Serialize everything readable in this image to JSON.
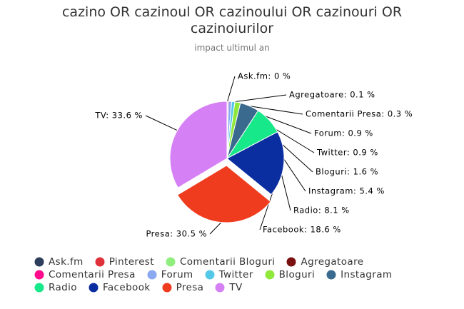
{
  "chart_data": {
    "type": "pie",
    "title": "cazino OR cazinoul OR cazinoului OR cazinouri OR cazinoiurilor",
    "subtitle": "impact ultimul an",
    "categories": [
      "Ask.fm",
      "Pinterest",
      "Comentarii Bloguri",
      "Agregatoare",
      "Comentarii Presa",
      "Forum",
      "Twitter",
      "Bloguri",
      "Instagram",
      "Radio",
      "Facebook",
      "Presa",
      "TV"
    ],
    "values": [
      0,
      0,
      0,
      0.1,
      0.3,
      0.9,
      0.9,
      1.6,
      5.4,
      8.1,
      18.6,
      30.5,
      33.6
    ],
    "value_labels": [
      "Ask.fm: 0 %",
      null,
      null,
      "Agregatoare: 0.1 %",
      "Comentarii Presa: 0.3 %",
      "Forum: 0.9 %",
      "Twitter: 0.9 %",
      "Bloguri: 1.6 %",
      "Instagram: 5.4 %",
      "Radio: 8.1 %",
      "Facebook: 18.6 %",
      "Presa: 30.5 %",
      "TV: 33.6 %"
    ],
    "colors": [
      "#2c3e5c",
      "#e0303a",
      "#90ee7e",
      "#7a1010",
      "#ff0a8c",
      "#8aa9f0",
      "#55c8e8",
      "#8fe83a",
      "#3a6a8e",
      "#17e88a",
      "#0a2da0",
      "#f03c1e",
      "#d580f5"
    ],
    "legend": "bottom"
  }
}
